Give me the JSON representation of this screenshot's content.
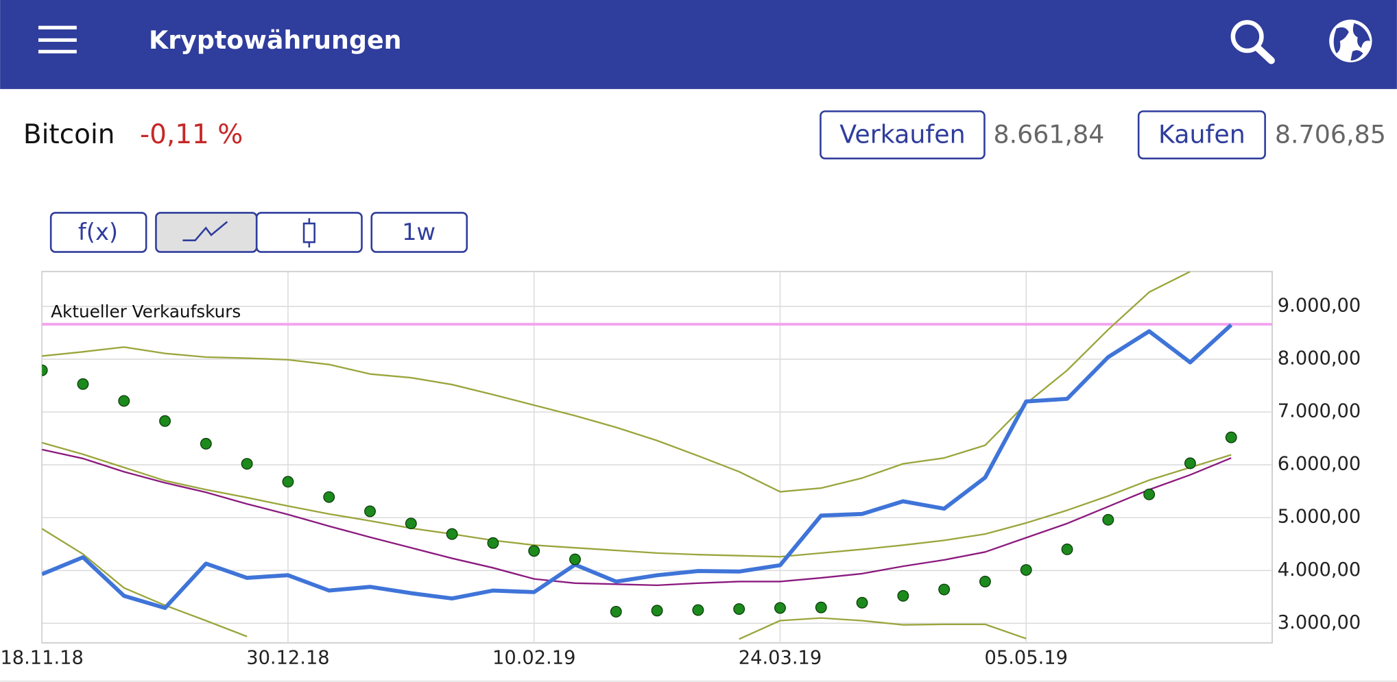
{
  "header": {
    "title": "Kryptowährungen"
  },
  "instrument": {
    "name": "Bitcoin",
    "change": "-0,11 %",
    "sell_button": "Verkaufen",
    "sell_price": "8.661,84",
    "buy_button": "Kaufen",
    "buy_price": "8.706,85"
  },
  "toolbar": {
    "function_button": "f(x)",
    "period_button": "1w"
  },
  "chart_data": {
    "type": "line",
    "x": [
      0,
      1,
      2,
      3,
      4,
      5,
      6,
      7,
      8,
      9,
      10,
      11,
      12,
      13,
      14,
      15,
      16,
      17,
      18,
      19,
      20,
      21,
      22,
      23,
      24,
      25,
      26,
      27,
      28,
      29
    ],
    "xlim": [
      0,
      30
    ],
    "xticks": [
      {
        "value": 0,
        "label": "18.11.18"
      },
      {
        "value": 6,
        "label": "30.12.18"
      },
      {
        "value": 12,
        "label": "10.02.19"
      },
      {
        "value": 18,
        "label": "24.03.19"
      },
      {
        "value": 24,
        "label": "05.05.19"
      }
    ],
    "ylim": [
      2630,
      9660
    ],
    "yticks": [
      {
        "value": 3000,
        "label": "3.000,00"
      },
      {
        "value": 4000,
        "label": "4.000,00"
      },
      {
        "value": 5000,
        "label": "5.000,00"
      },
      {
        "value": 6000,
        "label": "6.000,00"
      },
      {
        "value": 7000,
        "label": "7.000,00"
      },
      {
        "value": 8000,
        "label": "8.000,00"
      },
      {
        "value": 9000,
        "label": "9.000,00"
      }
    ],
    "grid": true,
    "reference_line": {
      "label": "Aktueller Verkaufskurs",
      "value": 8661.84,
      "color": "#f5a3f0"
    },
    "series": [
      {
        "type": "line",
        "color": "#9aa53c",
        "values": [
          8060,
          8140,
          8230,
          8110,
          8040,
          8020,
          7990,
          7900,
          7720,
          7650,
          7520,
          7330,
          7130,
          6930,
          6710,
          6460,
          6170,
          5870,
          5490,
          5560,
          5750,
          6020,
          6130,
          6370,
          7160,
          7790,
          8560,
          9270,
          9660,
          null
        ]
      },
      {
        "type": "line",
        "color": "#9aa53c",
        "values": [
          4790,
          4310,
          3670,
          3340,
          3050,
          2750,
          null,
          null,
          null,
          null,
          null,
          null,
          null,
          null,
          null,
          null,
          null,
          2700,
          3050,
          3100,
          3050,
          2970,
          2980,
          2980,
          2710,
          null,
          null,
          null,
          null,
          null
        ]
      },
      {
        "type": "line",
        "color": "#9aa53c",
        "values": [
          6420,
          6200,
          5950,
          5700,
          5530,
          5380,
          5220,
          5070,
          4940,
          4800,
          4690,
          4570,
          4480,
          4430,
          4380,
          4330,
          4300,
          4280,
          4260,
          4330,
          4400,
          4480,
          4570,
          4690,
          4900,
          5140,
          5410,
          5710,
          5950,
          6190
        ]
      },
      {
        "type": "line",
        "color": "#8b1a7e",
        "values": [
          6290,
          6120,
          5870,
          5660,
          5480,
          5260,
          5060,
          4840,
          4630,
          4430,
          4230,
          4050,
          3840,
          3760,
          3740,
          3720,
          3760,
          3790,
          3790,
          3860,
          3940,
          4080,
          4200,
          4350,
          4620,
          4890,
          5210,
          5530,
          5810,
          6130
        ]
      },
      {
        "type": "line",
        "color": "#3f74d8",
        "values": [
          3930,
          4250,
          3520,
          3290,
          4130,
          3860,
          3910,
          3620,
          3690,
          3570,
          3470,
          3620,
          3590,
          4110,
          3790,
          3910,
          3990,
          3980,
          4100,
          5040,
          5070,
          5310,
          5170,
          5760,
          7200,
          7250,
          8040,
          8530,
          7940,
          8650
        ]
      },
      {
        "type": "scatter",
        "color": "#1c8a1c",
        "values": [
          7790,
          7530,
          7210,
          6830,
          6400,
          6020,
          5680,
          5390,
          5120,
          4890,
          4690,
          4520,
          4370,
          4210,
          3220,
          3240,
          3250,
          3270,
          3290,
          3300,
          3390,
          3520,
          3640,
          3790,
          4010,
          4400,
          4960,
          5440,
          6030,
          6520
        ]
      }
    ]
  }
}
